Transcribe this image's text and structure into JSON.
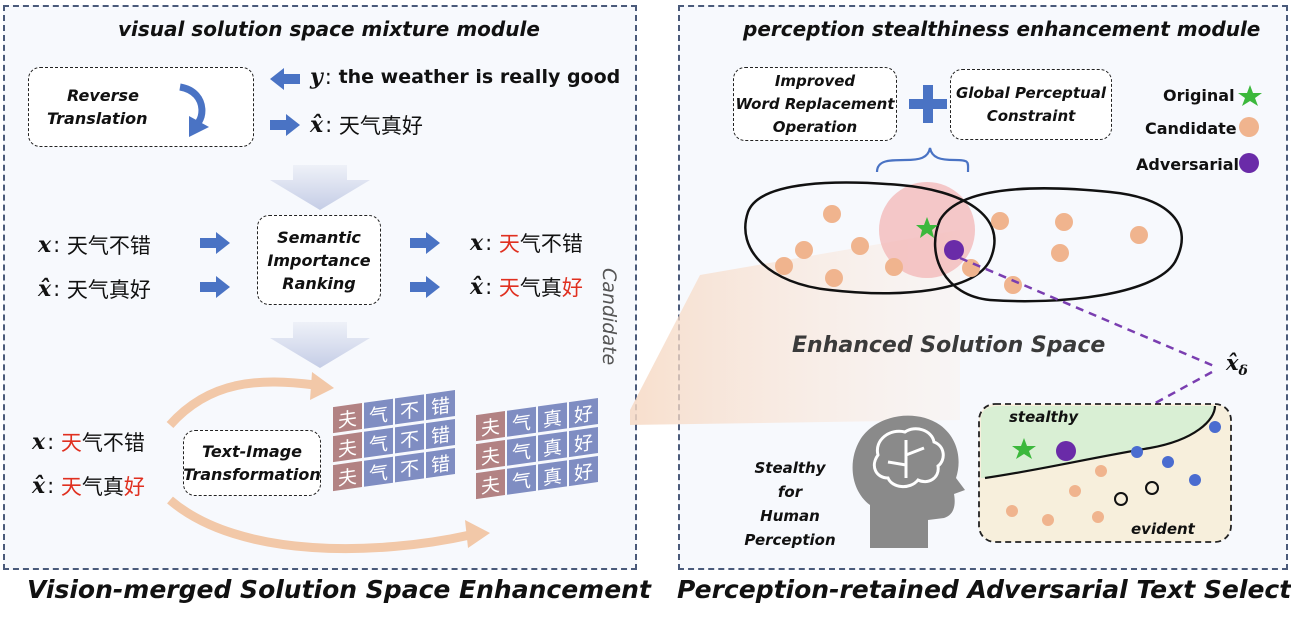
{
  "left_panel": {
    "title": "visual solution space mixture module",
    "reverse_translation": [
      "Reverse",
      "Translation"
    ],
    "y_label": "y",
    "y_text": "the weather is really good",
    "xhat_label": "x̂",
    "xhat_text": "天气真好",
    "x_label": "x",
    "x_text": "天气不错",
    "semantic_box": [
      "Semantic",
      "Importance",
      "Ranking"
    ],
    "ranked_x": {
      "highlight": "天",
      "rest": "气不错"
    },
    "ranked_xhat": {
      "highlight_first": "天",
      "middle": "气真",
      "highlight_last": "好"
    },
    "text_image_box": [
      "Text-Image",
      "Transformation"
    ],
    "grid1": [
      [
        "夫",
        "气",
        "不",
        "错"
      ],
      [
        "夫",
        "气",
        "不",
        "错"
      ],
      [
        "夫",
        "气",
        "不",
        "错"
      ]
    ],
    "grid2": [
      [
        "夫",
        "气",
        "真",
        "好"
      ],
      [
        "夫",
        "气",
        "真",
        "好"
      ],
      [
        "夫",
        "气",
        "真",
        "好"
      ]
    ]
  },
  "right_panel": {
    "title": "perception stealthiness enhancement module",
    "word_box": [
      "Improved",
      "Word Replacement",
      "Operation"
    ],
    "global_box": [
      "Global Perceptual",
      "Constraint"
    ],
    "legend": [
      {
        "label": "Original",
        "color": "#3cb83c",
        "shape": "star"
      },
      {
        "label": "Candidate",
        "color": "#f0b48e",
        "shape": "circle"
      },
      {
        "label": "Adversarial",
        "color": "#6a2ba8",
        "shape": "circle"
      }
    ],
    "enhanced_label": "Enhanced Solution Space",
    "xdelta_label": "x̂",
    "xdelta_sub": "δ",
    "stealthy_label": "stealthy",
    "evident_label": "evident",
    "human_label": [
      "Stealthy",
      "for",
      "Human",
      "Perception"
    ]
  },
  "candidate_label": "Candidate",
  "bottom_left_title": "Vision-merged Solution Space Enhancement",
  "bottom_right_title": "Perception-retained Adversarial Text Selection",
  "colors": {
    "accent_blue": "#4a73c4",
    "red": "#e03020",
    "purple": "#6a2ba8",
    "green": "#3cb83c"
  }
}
